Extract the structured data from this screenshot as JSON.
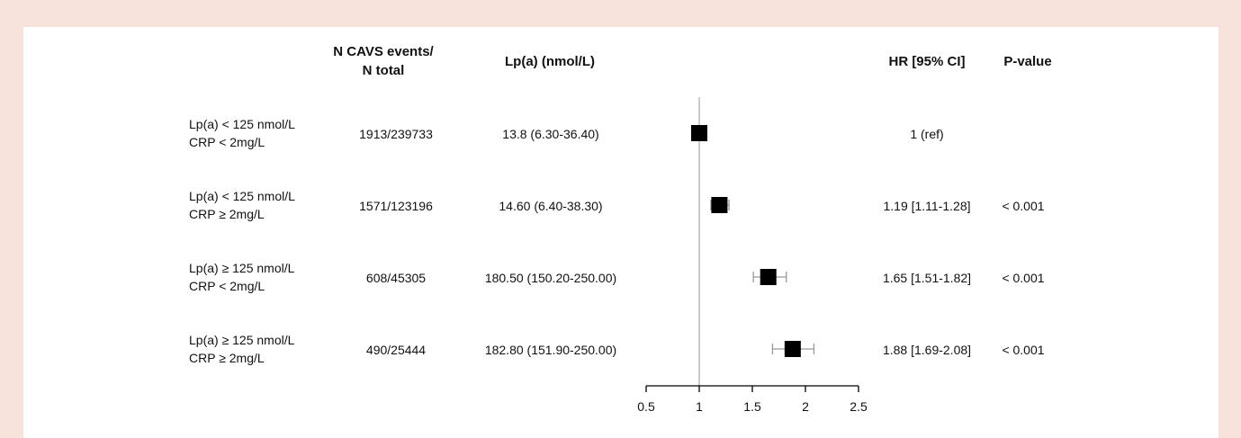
{
  "headers": {
    "events": "N CAVS events/\nN total",
    "lpa": "Lp(a) (nmol/L)",
    "hr": "HR [95% CI]",
    "pvalue": "P-value"
  },
  "rows": [
    {
      "label_line1": "Lp(a) < 125 nmol/L",
      "label_line2": "CRP < 2mg/L",
      "events": "1913/239733",
      "lpa": "13.8 (6.30-36.40)",
      "hr_text": "1 (ref)",
      "p": ""
    },
    {
      "label_line1": "Lp(a) < 125 nmol/L",
      "label_line2": "CRP ≥ 2mg/L",
      "events": "1571/123196",
      "lpa": "14.60 (6.40-38.30)",
      "hr_text": "1.19 [1.11-1.28]",
      "p": "< 0.001"
    },
    {
      "label_line1": "Lp(a) ≥ 125 nmol/L",
      "label_line2": "CRP < 2mg/L",
      "events": "608/45305",
      "lpa": "180.50 (150.20-250.00)",
      "hr_text": "1.65 [1.51-1.82]",
      "p": "< 0.001"
    },
    {
      "label_line1": "Lp(a) ≥ 125 nmol/L",
      "label_line2": "CRP ≥ 2mg/L",
      "events": "490/25444",
      "lpa": "182.80 (151.90-250.00)",
      "hr_text": "1.88 [1.69-2.08]",
      "p": "< 0.001"
    }
  ],
  "chart_data": {
    "type": "forest",
    "reference_line": 1,
    "xlim": [
      0.5,
      2.5
    ],
    "xticks": [
      "0.5",
      "1",
      "1.5",
      "2",
      "2.5"
    ],
    "series": [
      {
        "hr": [
          1.0,
          1.19,
          1.65,
          1.88
        ],
        "ci_low": [
          1.0,
          1.11,
          1.51,
          1.69
        ],
        "ci_high": [
          1.0,
          1.28,
          1.82,
          2.08
        ]
      }
    ]
  },
  "colors": {
    "background": "#f7e2dc",
    "panel": "#ffffff",
    "marker": "#000000",
    "ci": "#999999",
    "ref_line": "#aaaaaa"
  }
}
